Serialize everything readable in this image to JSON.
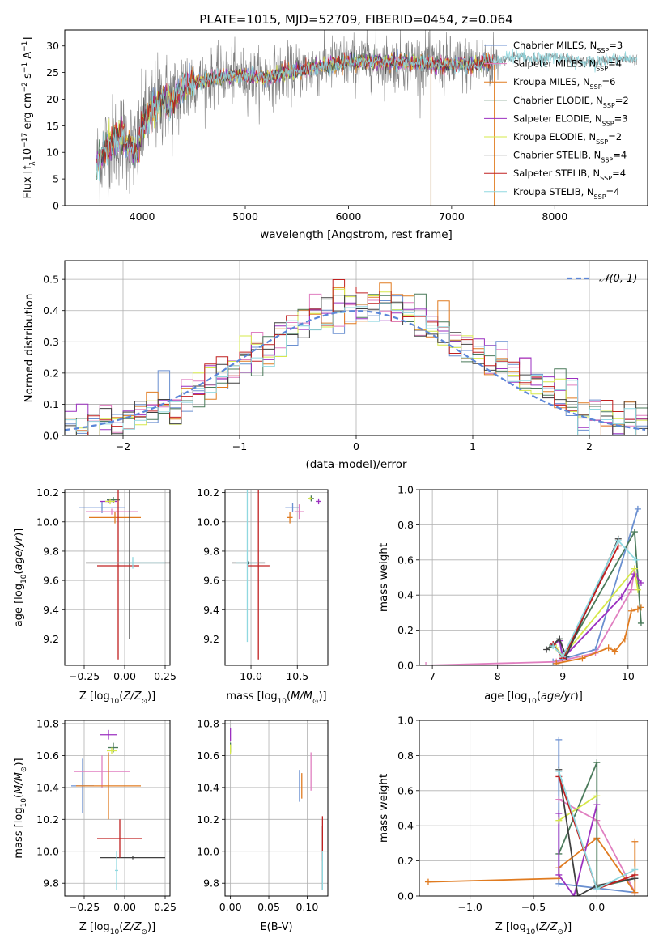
{
  "figure": {
    "title": "PLATE=1015, MJD=52709, FIBERID=0454, z=0.064"
  },
  "chart_data": [
    {
      "id": "spectrum",
      "type": "line",
      "xlabel": "wavelength [Angstrom, rest frame]",
      "ylabel": "Flux [f_λ10^-17 erg cm^-2 s^-1 A^-1]",
      "xlim": [
        3250,
        8900
      ],
      "ylim": [
        0,
        33
      ],
      "xticks": [
        4000,
        5000,
        6000,
        7000,
        8000
      ],
      "yticks": [
        0,
        5,
        10,
        15,
        20,
        25,
        30
      ],
      "legend_position": "upper right",
      "data_color": "#808080",
      "series": [
        {
          "name": "Chabrier MILES, N_SSP=3",
          "label": "Chabrier MILES, N",
          "sub": "SSP",
          "suffix": "=3",
          "color": "#6a8fd0"
        },
        {
          "name": "Salpeter MILES, N_SSP=4",
          "label": "Salpeter MILES, N",
          "sub": "SSP",
          "suffix": "=4",
          "color": "#e07fc0"
        },
        {
          "name": "Kroupa MILES, N_SSP=6",
          "label": "Kroupa MILES, N",
          "sub": "SSP",
          "suffix": "=6",
          "color": "#e07b20"
        },
        {
          "name": "Chabrier ELODIE, N_SSP=2",
          "label": "Chabrier ELODIE, N",
          "sub": "SSP",
          "suffix": "=2",
          "color": "#4a7a5a"
        },
        {
          "name": "Salpeter ELODIE, N_SSP=3",
          "label": "Salpeter ELODIE, N",
          "sub": "SSP",
          "suffix": "=3",
          "color": "#9b30c0"
        },
        {
          "name": "Kroupa ELODIE, N_SSP=2",
          "label": "Kroupa ELODIE, N",
          "sub": "SSP",
          "suffix": "=2",
          "color": "#d6e84a"
        },
        {
          "name": "Chabrier STELIB, N_SSP=4",
          "label": "Chabrier STELIB, N",
          "sub": "SSP",
          "suffix": "=4",
          "color": "#404040"
        },
        {
          "name": "Salpeter STELIB, N_SSP=4",
          "label": "Salpeter STELIB, N",
          "sub": "SSP",
          "suffix": "=4",
          "color": "#c02020"
        },
        {
          "name": "Kroupa STELIB, N_SSP=4",
          "label": "Kroupa STELIB, N",
          "sub": "SSP",
          "suffix": "=4",
          "color": "#90d8e0"
        }
      ],
      "continuum": [
        [
          3560,
          8
        ],
        [
          3650,
          11
        ],
        [
          3800,
          13
        ],
        [
          3950,
          10
        ],
        [
          4000,
          15
        ],
        [
          4100,
          18
        ],
        [
          4200,
          20
        ],
        [
          4300,
          19.5
        ],
        [
          4400,
          22
        ],
        [
          4500,
          23
        ],
        [
          4700,
          24
        ],
        [
          4900,
          24.5
        ],
        [
          5200,
          24
        ],
        [
          5400,
          25
        ],
        [
          5700,
          26
        ],
        [
          6000,
          27
        ],
        [
          6300,
          27
        ],
        [
          6600,
          27
        ],
        [
          6900,
          26.5
        ],
        [
          7200,
          26.5
        ],
        [
          7400,
          27
        ],
        [
          7600,
          28
        ],
        [
          7800,
          27.5
        ],
        [
          8000,
          28
        ],
        [
          8200,
          27
        ],
        [
          8400,
          27
        ],
        [
          8600,
          27.5
        ],
        [
          8800,
          27.5
        ]
      ],
      "model_range": [
        3560,
        7400
      ],
      "noisy_range": [
        3560,
        7450
      ]
    },
    {
      "id": "residuals",
      "type": "histogram",
      "xlabel": "(data-model)/error",
      "ylabel": "Normed distribution",
      "xlim": [
        -2.5,
        2.5
      ],
      "ylim": [
        0,
        0.56
      ],
      "xticks": [
        -2,
        -1,
        0,
        1,
        2
      ],
      "yticks": [
        0.0,
        0.1,
        0.2,
        0.3,
        0.4,
        0.5
      ],
      "bin_width": 0.1,
      "reference": {
        "name": "𝒩(0, 1)",
        "mean": 0,
        "sigma": 1,
        "color": "#5b86d8"
      }
    },
    {
      "id": "age-vs-Z",
      "type": "errorbar",
      "xlabel": "Z [log10(Z/Z⊙)]",
      "ylabel": "age [log10(age/yr)]",
      "xlim": [
        -0.37,
        0.28
      ],
      "ylim": [
        9.02,
        10.22
      ],
      "xticks": [
        -0.25,
        0.0,
        0.25
      ],
      "yticks": [
        9.2,
        9.4,
        9.6,
        9.8,
        10.0,
        10.2
      ],
      "points": [
        {
          "x": -0.14,
          "xerr": 0.14,
          "y": 10.1,
          "yerr": 0.04,
          "color": "#6a8fd0"
        },
        {
          "x": -0.08,
          "xerr": 0.16,
          "y": 10.07,
          "yerr": 0.02,
          "color": "#e07fc0"
        },
        {
          "x": -0.06,
          "xerr": 0.16,
          "y": 10.03,
          "yerr": 0.04,
          "color": "#e07b20"
        },
        {
          "x": -0.07,
          "xerr": 0.04,
          "y": 10.15,
          "yerr": 0.02,
          "color": "#4a7a5a"
        },
        {
          "x": -0.1,
          "xerr": 0.05,
          "y": 10.14,
          "yerr": 0.01,
          "color": "#9b30c0"
        },
        {
          "x": -0.09,
          "xerr": 0.03,
          "y": 10.14,
          "yerr": 0.02,
          "color": "#d6e84a"
        },
        {
          "x": 0.03,
          "xerr": 0.27,
          "y": 9.72,
          "yerr": 0.52,
          "color": "#404040"
        },
        {
          "x": -0.04,
          "xerr": 0.13,
          "y": 9.7,
          "yerr": 0.64,
          "color": "#c02020"
        },
        {
          "x": 0.05,
          "xerr": 0.2,
          "y": 9.72,
          "yerr": 0.04,
          "color": "#90d8e0"
        }
      ]
    },
    {
      "id": "age-vs-mass",
      "type": "errorbar",
      "xlabel": "mass [log10(M/M⊙)]",
      "ylabel": "",
      "xlim": [
        9.72,
        10.83
      ],
      "ylim": [
        9.02,
        10.22
      ],
      "xticks": [
        10.0,
        10.5
      ],
      "yticks": [
        9.2,
        9.4,
        9.6,
        9.8,
        10.0,
        10.2
      ],
      "points": [
        {
          "x": 10.45,
          "xerr": 0.08,
          "y": 10.1,
          "yerr": 0.03,
          "color": "#6a8fd0"
        },
        {
          "x": 10.52,
          "xerr": 0.05,
          "y": 10.07,
          "yerr": 0.05,
          "color": "#e07fc0"
        },
        {
          "x": 10.42,
          "xerr": 0.03,
          "y": 10.03,
          "yerr": 0.04,
          "color": "#e07b20"
        },
        {
          "x": 10.65,
          "xerr": 0.03,
          "y": 10.16,
          "yerr": 0.02,
          "color": "#4a7a5a"
        },
        {
          "x": 10.73,
          "xerr": 0.03,
          "y": 10.14,
          "yerr": 0.02,
          "color": "#9b30c0"
        },
        {
          "x": 10.64,
          "xerr": 0.02,
          "y": 10.16,
          "yerr": 0.01,
          "color": "#d6e84a"
        },
        {
          "x": 9.97,
          "xerr": 0.18,
          "y": 9.72,
          "yerr": 0.01,
          "color": "#404040"
        },
        {
          "x": 10.08,
          "xerr": 0.12,
          "y": 9.7,
          "yerr": 0.64,
          "color": "#c02020"
        },
        {
          "x": 9.96,
          "xerr": 0.12,
          "y": 9.72,
          "yerr": 0.54,
          "color": "#90d8e0"
        }
      ]
    },
    {
      "id": "weight-vs-age",
      "type": "line",
      "xlabel": "age [log10(age/yr)]",
      "ylabel": "mass weight",
      "xlim": [
        6.8,
        10.3
      ],
      "ylim": [
        0,
        1.0
      ],
      "xticks": [
        7,
        8,
        9,
        10
      ],
      "yticks": [
        0.0,
        0.2,
        0.4,
        0.6,
        0.8,
        1.0
      ],
      "series": [
        {
          "color": "#6a8fd0",
          "points": [
            [
              8.85,
              0.02
            ],
            [
              9.5,
              0.09
            ],
            [
              10.15,
              0.89
            ]
          ]
        },
        {
          "color": "#e07fc0",
          "points": [
            [
              6.9,
              0.0
            ],
            [
              8.9,
              0.02
            ],
            [
              9.5,
              0.07
            ],
            [
              10.05,
              0.43
            ],
            [
              10.1,
              0.55
            ]
          ]
        },
        {
          "color": "#e07b20",
          "points": [
            [
              8.9,
              0.01
            ],
            [
              9.3,
              0.04
            ],
            [
              9.7,
              0.1
            ],
            [
              9.8,
              0.08
            ],
            [
              9.95,
              0.15
            ],
            [
              10.05,
              0.31
            ],
            [
              10.15,
              0.32
            ],
            [
              10.2,
              0.33
            ]
          ]
        },
        {
          "color": "#4a7a5a",
          "points": [
            [
              8.8,
              0.1
            ],
            [
              8.95,
              0.15
            ],
            [
              9.0,
              0.04
            ],
            [
              10.1,
              0.76
            ],
            [
              10.2,
              0.24
            ]
          ]
        },
        {
          "color": "#9b30c0",
          "points": [
            [
              8.85,
              0.12
            ],
            [
              8.95,
              0.14
            ],
            [
              9.0,
              0.04
            ],
            [
              9.9,
              0.39
            ],
            [
              10.1,
              0.52
            ],
            [
              10.2,
              0.47
            ]
          ]
        },
        {
          "color": "#d6e84a",
          "points": [
            [
              8.9,
              0.1
            ],
            [
              9.0,
              0.05
            ],
            [
              10.1,
              0.55
            ],
            [
              10.15,
              0.43
            ]
          ]
        },
        {
          "color": "#404040",
          "points": [
            [
              8.75,
              0.09
            ],
            [
              8.95,
              0.15
            ],
            [
              9.05,
              0.05
            ],
            [
              9.85,
              0.72
            ]
          ]
        },
        {
          "color": "#c02020",
          "points": [
            [
              8.85,
              0.12
            ],
            [
              9.0,
              0.04
            ],
            [
              9.85,
              0.68
            ]
          ]
        },
        {
          "color": "#90d8e0",
          "points": [
            [
              8.85,
              0.11
            ],
            [
              9.0,
              0.05
            ],
            [
              9.85,
              0.71
            ],
            [
              10.12,
              0.6
            ]
          ]
        }
      ]
    },
    {
      "id": "mass-vs-Z",
      "type": "errorbar",
      "xlabel": "Z [log10(Z/Z⊙)]",
      "ylabel": "mass [log10(M/M⊙)]",
      "xlim": [
        -0.37,
        0.28
      ],
      "ylim": [
        9.72,
        10.82
      ],
      "xticks": [
        -0.25,
        0.0,
        0.25
      ],
      "yticks": [
        9.8,
        10.0,
        10.2,
        10.4,
        10.6,
        10.8
      ],
      "points": [
        {
          "x": -0.26,
          "xerr": 0.07,
          "y": 10.41,
          "yerr": 0.17,
          "color": "#6a8fd0"
        },
        {
          "x": -0.14,
          "xerr": 0.17,
          "y": 10.5,
          "yerr": 0.1,
          "color": "#e07fc0"
        },
        {
          "x": -0.1,
          "xerr": 0.2,
          "y": 10.41,
          "yerr": 0.21,
          "color": "#e07b20"
        },
        {
          "x": -0.07,
          "xerr": 0.03,
          "y": 10.65,
          "yerr": 0.03,
          "color": "#4a7a5a"
        },
        {
          "x": -0.1,
          "xerr": 0.05,
          "y": 10.73,
          "yerr": 0.03,
          "color": "#9b30c0"
        },
        {
          "x": -0.08,
          "xerr": 0.03,
          "y": 10.63,
          "yerr": 0.02,
          "color": "#d6e84a"
        },
        {
          "x": 0.05,
          "xerr": 0.2,
          "y": 9.96,
          "yerr": 0.01,
          "color": "#404040"
        },
        {
          "x": -0.03,
          "xerr": 0.14,
          "y": 10.08,
          "yerr": 0.12,
          "color": "#c02020"
        },
        {
          "x": -0.05,
          "xerr": 0.01,
          "y": 9.88,
          "yerr": 0.12,
          "color": "#90d8e0"
        }
      ]
    },
    {
      "id": "mass-vs-ebv",
      "type": "errorbar",
      "xlabel": "E(B-V)",
      "ylabel": "",
      "xlim": [
        -0.007,
        0.127
      ],
      "ylim": [
        9.72,
        10.82
      ],
      "xticks": [
        0.0,
        0.05,
        0.1
      ],
      "yticks": [
        9.8,
        10.0,
        10.2,
        10.4,
        10.6,
        10.8
      ],
      "points": [
        {
          "x": 0.09,
          "xerr": 0.0,
          "y": 10.41,
          "yerr": 0.1,
          "color": "#6a8fd0"
        },
        {
          "x": 0.105,
          "xerr": 0.0,
          "y": 10.5,
          "yerr": 0.12,
          "color": "#e07fc0"
        },
        {
          "x": 0.093,
          "xerr": 0.0,
          "y": 10.41,
          "yerr": 0.08,
          "color": "#e07b20"
        },
        {
          "x": 0.0,
          "xerr": 0.0,
          "y": 10.65,
          "yerr": 0.03,
          "color": "#4a7a5a"
        },
        {
          "x": 0.0,
          "xerr": 0.0,
          "y": 10.73,
          "yerr": 0.04,
          "color": "#9b30c0"
        },
        {
          "x": 0.0,
          "xerr": 0.0,
          "y": 10.64,
          "yerr": 0.03,
          "color": "#d6e84a"
        },
        {
          "x": 0.12,
          "xerr": 0.0,
          "y": 9.96,
          "yerr": 0.2,
          "color": "#404040"
        },
        {
          "x": 0.12,
          "xerr": 0.0,
          "y": 10.08,
          "yerr": 0.14,
          "color": "#c02020"
        },
        {
          "x": 0.12,
          "xerr": 0.0,
          "y": 9.88,
          "yerr": 0.12,
          "color": "#90d8e0"
        }
      ]
    },
    {
      "id": "weight-vs-Z",
      "type": "line",
      "xlabel": "Z [log10(Z/Z⊙)]",
      "ylabel": "mass weight",
      "xlim": [
        -1.4,
        0.4
      ],
      "ylim": [
        0,
        1.0
      ],
      "xticks": [
        -1.0,
        -0.5,
        0.0
      ],
      "yticks": [
        0.0,
        0.2,
        0.4,
        0.6,
        0.8,
        1.0
      ],
      "series": [
        {
          "color": "#6a8fd0",
          "points": [
            [
              -0.3,
              0.89
            ],
            [
              -0.3,
              0.07
            ],
            [
              0.3,
              0.02
            ]
          ]
        },
        {
          "color": "#e07fc0",
          "points": [
            [
              -0.3,
              0.55
            ],
            [
              0.0,
              0.43
            ],
            [
              0.3,
              0.02
            ]
          ]
        },
        {
          "color": "#e07b20",
          "points": [
            [
              -1.33,
              0.08
            ],
            [
              -0.3,
              0.1
            ],
            [
              -0.3,
              0.16
            ],
            [
              0.0,
              0.33
            ],
            [
              0.3,
              0.02
            ],
            [
              0.3,
              0.31
            ]
          ]
        },
        {
          "color": "#4a7a5a",
          "points": [
            [
              -0.3,
              0.24
            ],
            [
              0.0,
              0.76
            ],
            [
              0.0,
              0.05
            ],
            [
              0.3,
              0.1
            ]
          ]
        },
        {
          "color": "#9b30c0",
          "points": [
            [
              -0.3,
              0.47
            ],
            [
              -0.3,
              0.12
            ],
            [
              -0.18,
              0.0
            ],
            [
              0.0,
              0.52
            ]
          ]
        },
        {
          "color": "#d6e84a",
          "points": [
            [
              -0.3,
              0.43
            ],
            [
              0.0,
              0.57
            ]
          ]
        },
        {
          "color": "#404040",
          "points": [
            [
              -0.3,
              0.72
            ],
            [
              -0.15,
              0.0
            ],
            [
              0.0,
              0.06
            ],
            [
              0.3,
              0.1
            ]
          ]
        },
        {
          "color": "#c02020",
          "points": [
            [
              -0.3,
              0.68
            ],
            [
              0.0,
              0.04
            ],
            [
              0.3,
              0.12
            ]
          ]
        },
        {
          "color": "#90d8e0",
          "points": [
            [
              -0.3,
              0.71
            ],
            [
              0.0,
              0.04
            ],
            [
              0.3,
              0.15
            ]
          ]
        }
      ]
    }
  ]
}
